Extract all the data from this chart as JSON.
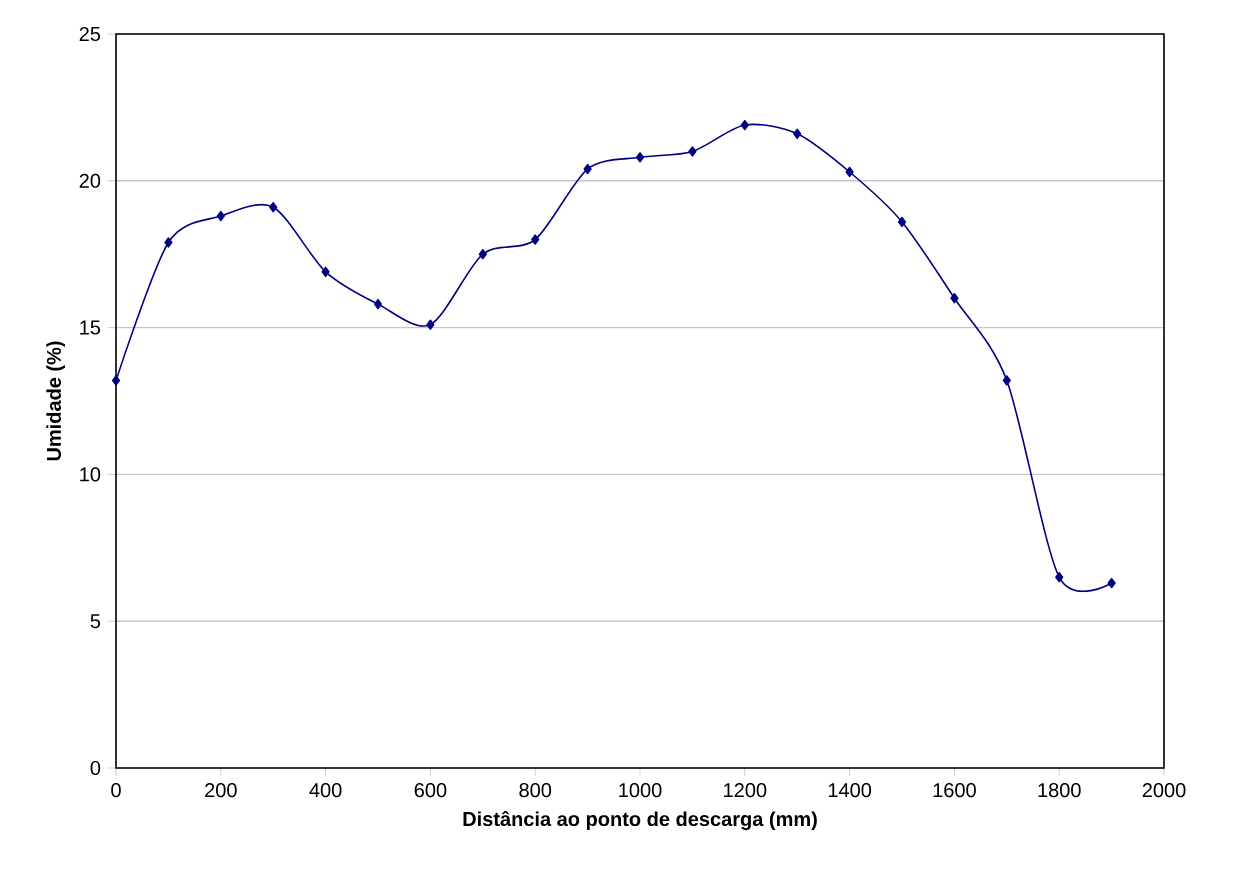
{
  "chart_data": {
    "type": "line",
    "xlabel": "Distância ao ponto de descarga (mm)",
    "ylabel": "Umidade (%)",
    "x": [
      0,
      100,
      200,
      300,
      400,
      500,
      600,
      700,
      800,
      900,
      1000,
      1100,
      1200,
      1300,
      1400,
      1500,
      1600,
      1700,
      1800,
      1900
    ],
    "series": [
      {
        "color": "#000080",
        "values": [
          13.2,
          17.9,
          18.8,
          19.1,
          16.9,
          15.8,
          15.1,
          17.5,
          18.0,
          20.4,
          20.8,
          21.0,
          21.9,
          21.6,
          20.3,
          18.6,
          16.0,
          13.2,
          6.5,
          6.3
        ]
      }
    ],
    "xlim": [
      0,
      2000
    ],
    "xticks": [
      0,
      200,
      400,
      600,
      800,
      1000,
      1200,
      1400,
      1600,
      1800,
      2000
    ],
    "ylim": [
      0,
      25
    ],
    "yticks": [
      0,
      5,
      10,
      15,
      20,
      25
    ],
    "grid": "y",
    "marker": "diamond",
    "line_style": "solid"
  }
}
